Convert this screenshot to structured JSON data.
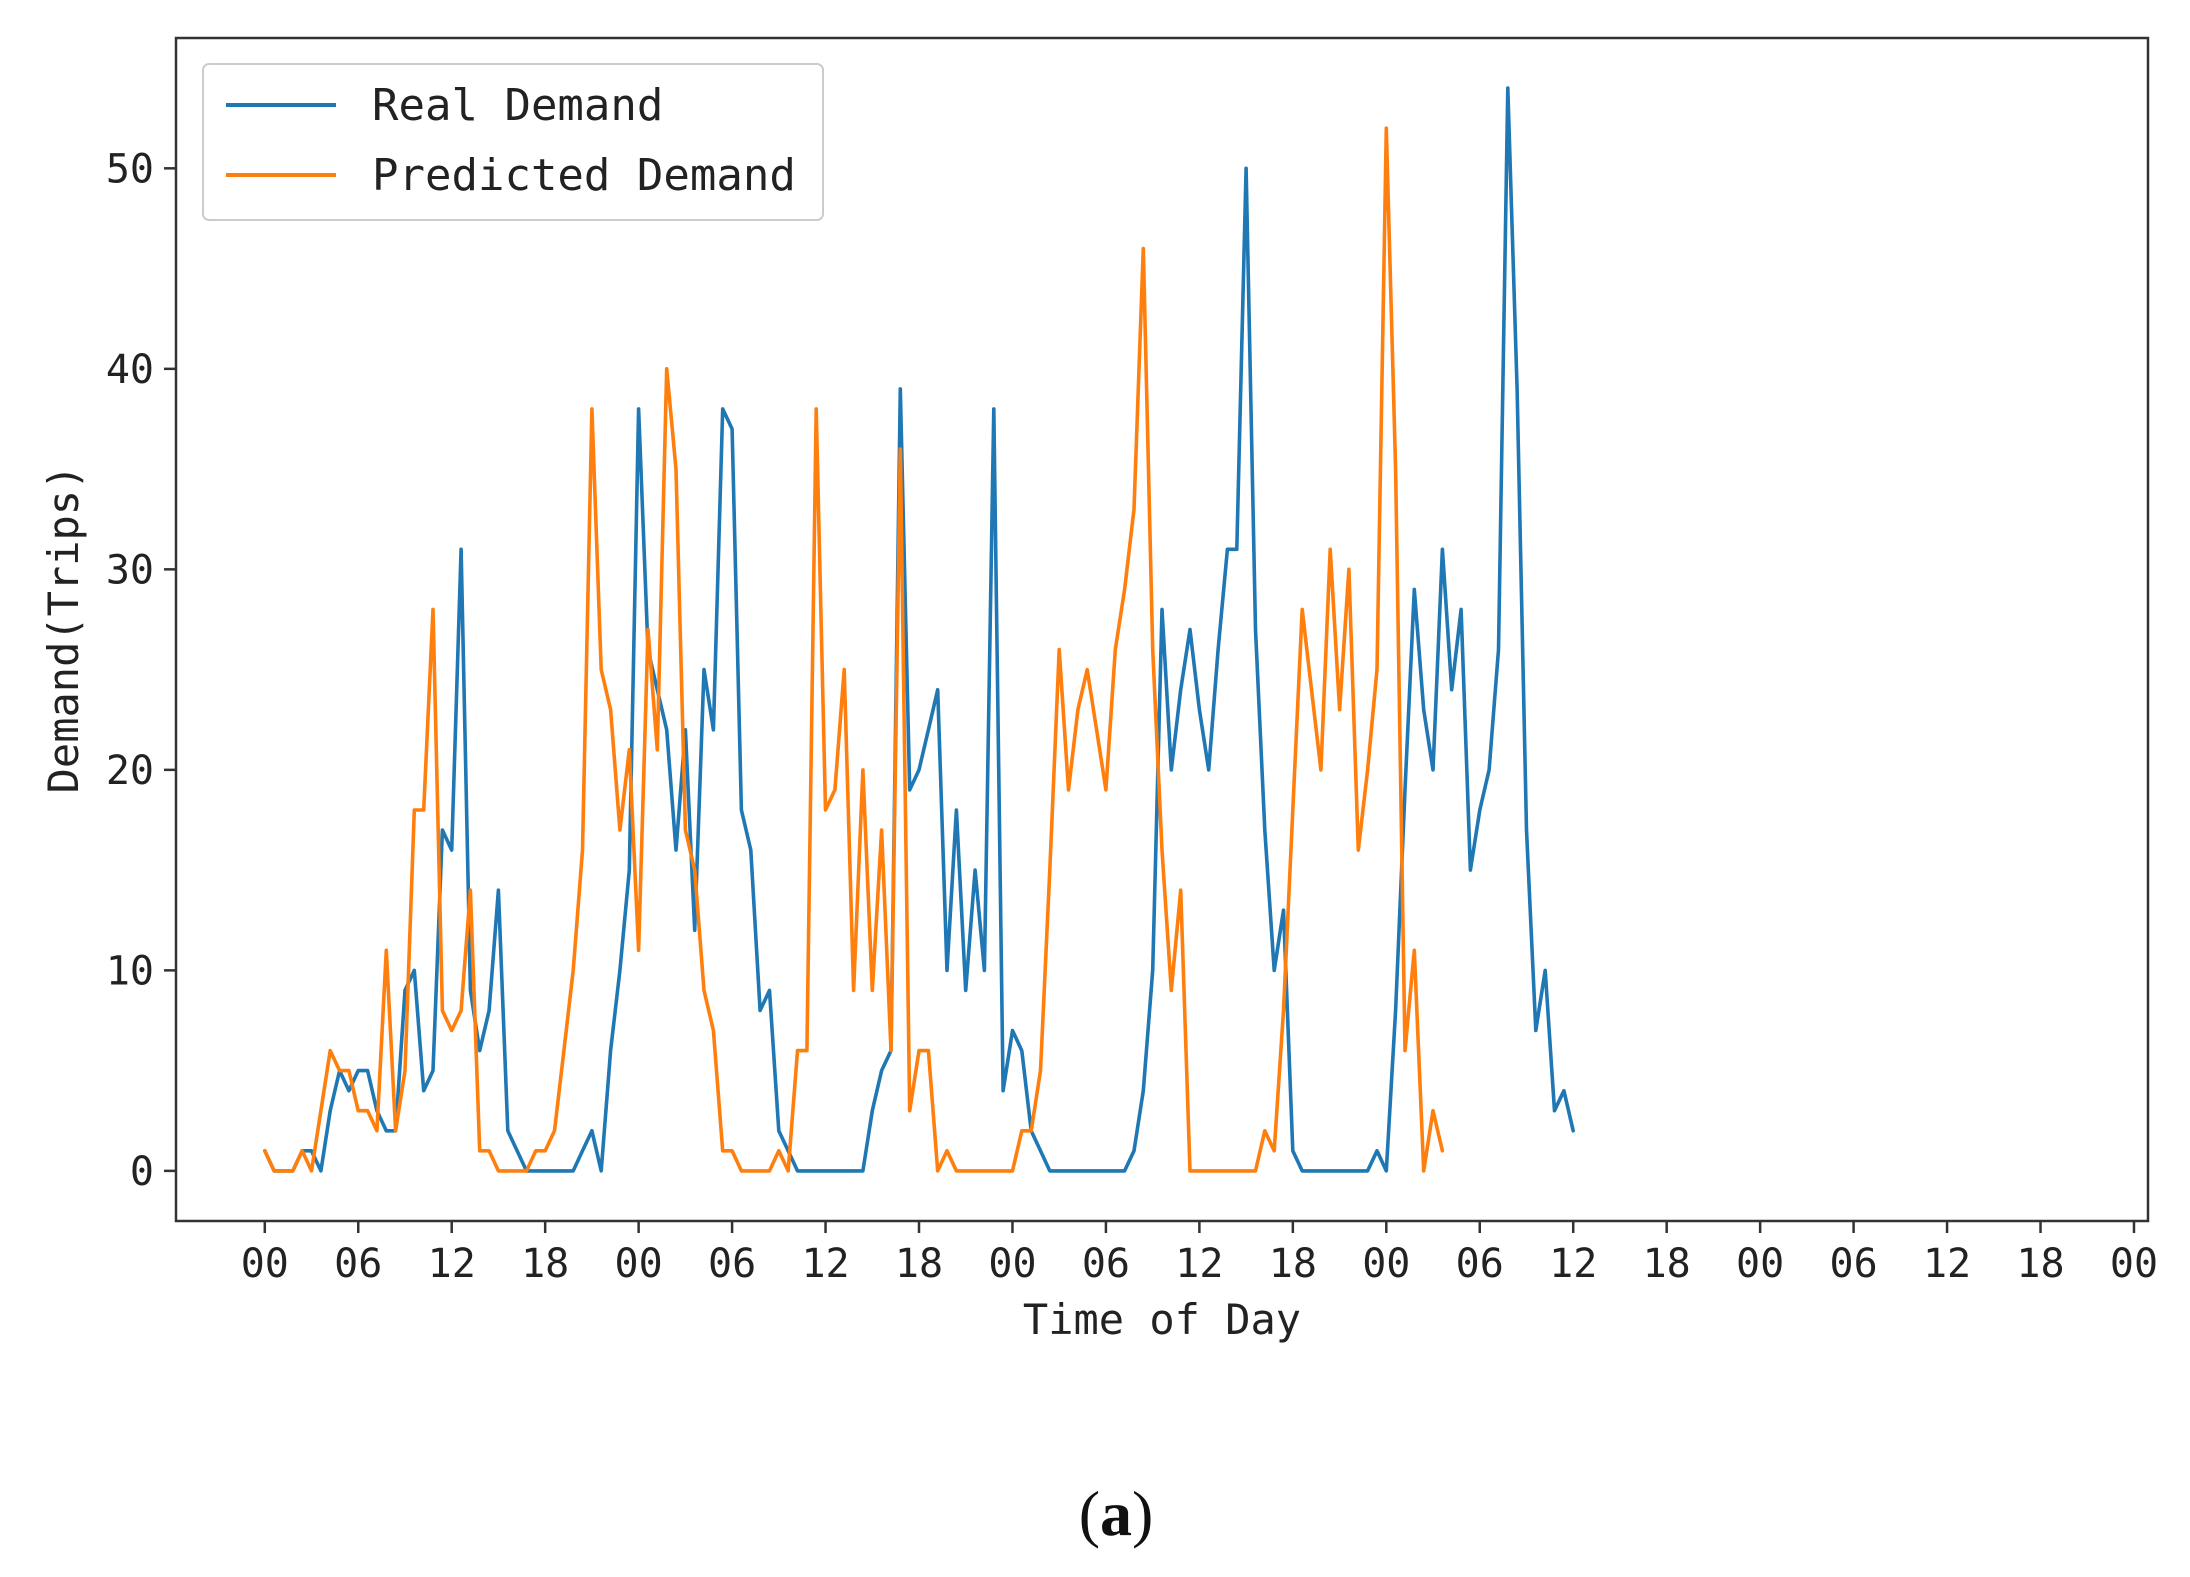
{
  "caption": {
    "open": "(",
    "letter": "a",
    "close": ")"
  },
  "chart_data": {
    "type": "line",
    "title": "",
    "xlabel": "Time of Day",
    "ylabel": "Demand(Trips)",
    "ylim": [
      -2.5,
      56.5
    ],
    "yticks": [
      0,
      10,
      20,
      30,
      40,
      50
    ],
    "xlim": [
      -9.5,
      201.5
    ],
    "xticks": [
      0,
      10,
      20,
      30,
      40,
      50,
      60,
      70,
      80,
      90,
      100,
      110,
      120,
      130,
      140,
      150,
      160,
      170,
      180,
      190,
      200
    ],
    "xticklabels": [
      "00",
      "06",
      "12",
      "18",
      "00",
      "06",
      "12",
      "18",
      "00",
      "06",
      "12",
      "18",
      "00",
      "06",
      "12",
      "18",
      "00",
      "06",
      "12",
      "18",
      "00"
    ],
    "x_step_hours": 0.6,
    "grid": false,
    "legend": "top-left",
    "series": [
      {
        "name": "Real Demand",
        "color": "#1f77b4",
        "values": [
          1,
          0,
          0,
          0,
          1,
          1,
          0,
          3,
          5,
          4,
          5,
          5,
          3,
          2,
          2,
          9,
          10,
          4,
          5,
          17,
          16,
          31,
          9,
          6,
          8,
          14,
          2,
          1,
          0,
          0,
          0,
          0,
          0,
          0,
          1,
          2,
          0,
          6,
          10,
          15,
          38,
          26,
          24,
          22,
          16,
          22,
          12,
          25,
          22,
          38,
          37,
          18,
          16,
          8,
          9,
          2,
          1,
          0,
          0,
          0,
          0,
          0,
          0,
          0,
          0,
          3,
          5,
          6,
          39,
          19,
          20,
          22,
          24,
          10,
          18,
          9,
          15,
          10,
          38,
          4,
          7,
          6,
          2,
          1,
          0,
          0,
          0,
          0,
          0,
          0,
          0,
          0,
          0,
          1,
          4,
          10,
          28,
          20,
          24,
          27,
          23,
          20,
          26,
          31,
          31,
          50,
          27,
          17,
          10,
          13,
          1,
          0,
          0,
          0,
          0,
          0,
          0,
          0,
          0,
          1,
          0,
          8,
          19,
          29,
          23,
          20,
          31,
          24,
          28,
          15,
          18,
          20,
          26,
          54,
          39,
          17,
          7,
          10,
          3,
          4,
          2
        ]
      },
      {
        "name": "Predicted Demand",
        "color": "#ff7f0e",
        "values": [
          1,
          0,
          0,
          0,
          1,
          0,
          3,
          6,
          5,
          5,
          3,
          3,
          2,
          11,
          2,
          5,
          18,
          18,
          28,
          8,
          7,
          8,
          14,
          1,
          1,
          0,
          0,
          0,
          0,
          1,
          1,
          2,
          6,
          10,
          16,
          38,
          25,
          23,
          17,
          21,
          11,
          27,
          21,
          40,
          35,
          17,
          15,
          9,
          7,
          1,
          1,
          0,
          0,
          0,
          0,
          1,
          0,
          6,
          6,
          38,
          18,
          19,
          25,
          9,
          20,
          9,
          17,
          6,
          36,
          3,
          6,
          6,
          0,
          1,
          0,
          0,
          0,
          0,
          0,
          0,
          0,
          2,
          2,
          5,
          15,
          26,
          19,
          23,
          25,
          22,
          19,
          26,
          29,
          33,
          46,
          26,
          16,
          9,
          14,
          0,
          0,
          0,
          0,
          0,
          0,
          0,
          0,
          2,
          1,
          8,
          18,
          28,
          24,
          20,
          31,
          23,
          30,
          16,
          20,
          25,
          52,
          35,
          6,
          11,
          0,
          3,
          1
        ]
      }
    ]
  }
}
